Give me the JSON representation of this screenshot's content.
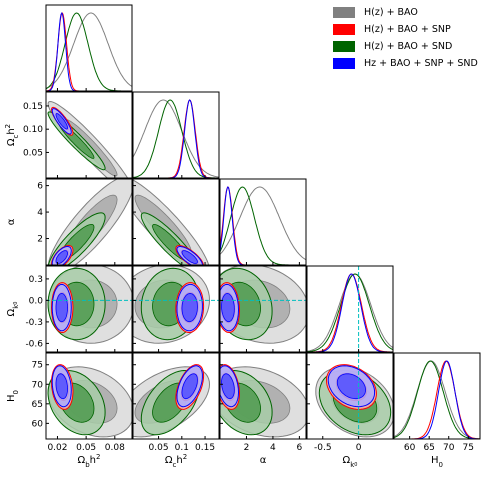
{
  "colors": {
    "H(z) + BAO": "#808080",
    "H(z) + BAO + SNP": "#ff0000",
    "H(z) + BAO + SND": "#006400",
    "Hz + BAO + SNP + SND": "#0000ff",
    "reference_line": "#00bfbf"
  },
  "legend": {
    "items": [
      {
        "label": "H(z) + BAO",
        "color": "#808080"
      },
      {
        "label": "H(z) + BAO + SNP",
        "color": "#ff0000"
      },
      {
        "label": "H(z) + BAO + SND",
        "color": "#006400"
      },
      {
        "label": "Hz + BAO + SNP + SND",
        "color": "#0000ff"
      }
    ]
  },
  "chart_data": {
    "type": "corner",
    "parameters": [
      "Ω_b h^2",
      "Ω_c h^2",
      "α",
      "Ω_k0",
      "H_0"
    ],
    "axis_labels": {
      "Ω_b h^2": "Ω_b h^2",
      "Ω_c h^2": "Ω_c h^2",
      "α": "α",
      "Ω_k0": "Ω_k0",
      "H_0": "H_0"
    },
    "ranges": {
      "Ω_b h^2": [
        0.008,
        0.098
      ],
      "Ω_c h^2": [
        -0.005,
        0.18
      ],
      "α": [
        0,
        6.5
      ],
      "Ω_k0": [
        -0.72,
        0.48
      ],
      "H_0": [
        56,
        78
      ]
    },
    "ticks": {
      "Ω_b h^2": {
        "values": [
          0.02,
          0.05,
          0.08
        ],
        "labels": [
          "0.02",
          "0.05",
          "0.08"
        ]
      },
      "Ω_c h^2": {
        "values": [
          0.05,
          0.1,
          0.15
        ],
        "labels": [
          "0.05",
          "0.10",
          "0.15"
        ]
      },
      "Ω_c h^2_x": {
        "values": [
          0.05,
          0.1,
          0.15
        ],
        "labels": [
          "0.05",
          "0.1",
          "0.15"
        ]
      },
      "α": {
        "values": [
          2,
          4,
          6
        ],
        "labels": [
          "2",
          "4",
          "6"
        ]
      },
      "Ω_k0": {
        "values": [
          0.3,
          0.0,
          -0.3,
          -0.6
        ],
        "labels": [
          "0.3",
          "0.0",
          "-0.3",
          "-0.6"
        ]
      },
      "Ω_k0_x": {
        "values": [
          -0.5,
          0,
          0.5
        ],
        "labels": [
          "-0.5",
          "0",
          "0.5"
        ]
      },
      "H_0": {
        "values": [
          60,
          65,
          70,
          75
        ],
        "labels": [
          "60",
          "65",
          "70",
          "75"
        ]
      }
    },
    "reference_line": {
      "parameter": "Ω_k0",
      "value": 0.0
    },
    "series": [
      {
        "name": "H(z) + BAO",
        "color": "#808080",
        "means": {
          "Ω_b h^2": 0.055,
          "Ω_c h^2": 0.06,
          "α": 3.0,
          "Ω_k0": -0.05,
          "H_0": 65.5
        },
        "sigmas": {
          "Ω_b h^2": 0.018,
          "Ω_c h^2": 0.04,
          "α": 1.5,
          "Ω_k0": 0.22,
          "H_0": 3.6
        },
        "correlations": {
          "0-1": -0.95,
          "0-2": 0.85,
          "1-2": -0.9,
          "0-3": 0.0,
          "1-3": 0.1,
          "2-3": -0.2,
          "0-4": -0.3,
          "1-4": 0.5,
          "2-4": -0.3,
          "3-4": -0.3
        }
      },
      {
        "name": "H(z) + BAO + SNP",
        "color": "#ff0000",
        "means": {
          "Ω_b h^2": 0.025,
          "Ω_c h^2": 0.117,
          "α": 0.6,
          "Ω_k0": -0.1,
          "H_0": 69.3
        },
        "sigmas": {
          "Ω_b h^2": 0.0045,
          "Ω_c h^2": 0.012,
          "α": 0.35,
          "Ω_k0": 0.14,
          "H_0": 2.3
        },
        "correlations": {
          "0-1": -0.85,
          "0-2": 0.6,
          "1-2": -0.75,
          "0-3": 0.0,
          "1-3": 0.05,
          "2-3": -0.1,
          "0-4": -0.2,
          "1-4": 0.5,
          "2-4": -0.3,
          "3-4": -0.3
        }
      },
      {
        "name": "H(z) + BAO + SND",
        "color": "#006400",
        "means": {
          "Ω_b h^2": 0.04,
          "Ω_c h^2": 0.075,
          "α": 1.7,
          "Ω_k0": -0.05,
          "H_0": 65.3
        },
        "sigmas": {
          "Ω_b h^2": 0.012,
          "Ω_c h^2": 0.025,
          "α": 0.9,
          "Ω_k0": 0.2,
          "H_0": 3.3
        },
        "correlations": {
          "0-1": -0.95,
          "0-2": 0.85,
          "1-2": -0.9,
          "0-3": 0.0,
          "1-3": 0.1,
          "2-3": -0.2,
          "0-4": -0.3,
          "1-4": 0.5,
          "2-4": -0.3,
          "3-4": -0.3
        }
      },
      {
        "name": "Hz + BAO + SNP + SND",
        "color": "#0000ff",
        "means": {
          "Ω_b h^2": 0.0245,
          "Ω_c h^2": 0.117,
          "α": 0.6,
          "Ω_k0": -0.1,
          "H_0": 69.5
        },
        "sigmas": {
          "Ω_b h^2": 0.004,
          "Ω_c h^2": 0.011,
          "α": 0.32,
          "Ω_k0": 0.13,
          "H_0": 2.1
        },
        "correlations": {
          "0-1": -0.85,
          "0-2": 0.6,
          "1-2": -0.75,
          "0-3": 0.0,
          "1-3": 0.05,
          "2-3": -0.1,
          "0-4": -0.2,
          "1-4": 0.5,
          "2-4": -0.3,
          "3-4": -0.3
        }
      }
    ]
  }
}
